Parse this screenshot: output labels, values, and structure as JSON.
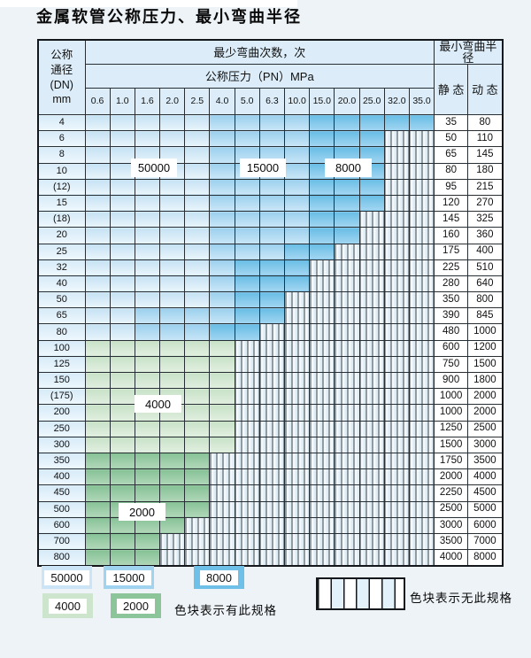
{
  "title": "金属软管公称压力、最小弯曲半径",
  "table": {
    "header": {
      "dn_lines": [
        "公称",
        "通径",
        "(DN)",
        "mm"
      ],
      "bend_times_label": "最少弯曲次数，次",
      "pressure_label": "公称压力（PN）MPa",
      "min_radius_label": "最小弯曲半径",
      "static_label": "静 态",
      "dynamic_label": "动 态",
      "pressures": [
        "0.6",
        "1.0",
        "1.6",
        "2.0",
        "2.5",
        "4.0",
        "5.0",
        "6.3",
        "10.0",
        "15.0",
        "20.0",
        "25.0",
        "32.0",
        "35.0"
      ]
    },
    "zone_labels": [
      "50000",
      "15000",
      "8000",
      "4000",
      "2000"
    ],
    "rows": [
      {
        "dn": "4",
        "static": "35",
        "dynamic": "80",
        "zones": "b1*5,b2*4,b3*5"
      },
      {
        "dn": "6",
        "static": "50",
        "dynamic": "110",
        "zones": "b1*5,b2*4,b3*3,x*2"
      },
      {
        "dn": "8",
        "static": "65",
        "dynamic": "145",
        "zones": "b1*5,b2*4,b3*3,x*2"
      },
      {
        "dn": "10",
        "static": "80",
        "dynamic": "180",
        "zones": "b1*5,b2*4,b3*3,x*2"
      },
      {
        "dn": "(12)",
        "static": "95",
        "dynamic": "215",
        "zones": "b1*5,b2*4,b3*3,x*2"
      },
      {
        "dn": "15",
        "static": "120",
        "dynamic": "270",
        "zones": "b1*5,b2*4,b3*3,x*2"
      },
      {
        "dn": "(18)",
        "static": "145",
        "dynamic": "325",
        "zones": "b1*5,b2*4,b3*2,x*3"
      },
      {
        "dn": "20",
        "static": "160",
        "dynamic": "360",
        "zones": "b1*5,b2*4,b3*2,x*3"
      },
      {
        "dn": "25",
        "static": "175",
        "dynamic": "400",
        "zones": "b1*5,b2*3,b3*2,x*4"
      },
      {
        "dn": "32",
        "static": "225",
        "dynamic": "510",
        "zones": "b1*5,b2*1,b3*3,x*5"
      },
      {
        "dn": "40",
        "static": "280",
        "dynamic": "640",
        "zones": "b1*5,b2*1,b3*3,x*5"
      },
      {
        "dn": "50",
        "static": "350",
        "dynamic": "800",
        "zones": "b1*5,b2*1,b3*2,x*6"
      },
      {
        "dn": "65",
        "static": "390",
        "dynamic": "845",
        "zones": "b1*2,b2*4,b3*2,x*6"
      },
      {
        "dn": "80",
        "static": "480",
        "dynamic": "1000",
        "zones": "b1*2,b2*3,b3*2,x*7"
      },
      {
        "dn": "100",
        "static": "600",
        "dynamic": "1200",
        "zones": "g1*6,x*8"
      },
      {
        "dn": "125",
        "static": "750",
        "dynamic": "1500",
        "zones": "g1*6,x*8"
      },
      {
        "dn": "150",
        "static": "900",
        "dynamic": "1800",
        "zones": "g1*6,x*8"
      },
      {
        "dn": "(175)",
        "static": "1000",
        "dynamic": "2000",
        "zones": "g1*6,x*8"
      },
      {
        "dn": "200",
        "static": "1000",
        "dynamic": "2000",
        "zones": "g1*6,x*8"
      },
      {
        "dn": "250",
        "static": "1250",
        "dynamic": "2500",
        "zones": "g1*6,x*8"
      },
      {
        "dn": "300",
        "static": "1500",
        "dynamic": "3000",
        "zones": "g1*6,x*8"
      },
      {
        "dn": "350",
        "static": "1750",
        "dynamic": "3500",
        "zones": "g2*5,x*9"
      },
      {
        "dn": "400",
        "static": "2000",
        "dynamic": "4000",
        "zones": "g2*5,x*9"
      },
      {
        "dn": "450",
        "static": "2250",
        "dynamic": "4500",
        "zones": "g2*5,x*9"
      },
      {
        "dn": "500",
        "static": "2500",
        "dynamic": "5000",
        "zones": "g2*5,x*9"
      },
      {
        "dn": "600",
        "static": "3000",
        "dynamic": "6000",
        "zones": "g2*4,x*10"
      },
      {
        "dn": "700",
        "static": "3500",
        "dynamic": "7000",
        "zones": "g2*3,x*11"
      },
      {
        "dn": "800",
        "static": "4000",
        "dynamic": "8000",
        "zones": "g2*3,x*11"
      }
    ]
  },
  "legend": {
    "items": [
      {
        "label": "50000",
        "zone": "b1"
      },
      {
        "label": "15000",
        "zone": "b2"
      },
      {
        "label": "8000",
        "zone": "b3"
      },
      {
        "label": "4000",
        "zone": "g1"
      },
      {
        "label": "2000",
        "zone": "g2"
      }
    ],
    "has_spec_label": "色块表示有此规格",
    "no_spec_label": "色块表示无此规格"
  },
  "colors": {
    "zone_50000": "#cbe5f6",
    "zone_15000": "#a0d3ef",
    "zone_8000": "#6fc0e8",
    "zone_4000": "#cde5cc",
    "zone_2000": "#8bc599",
    "border": "#14181c",
    "page_background": "#eef3f7"
  }
}
